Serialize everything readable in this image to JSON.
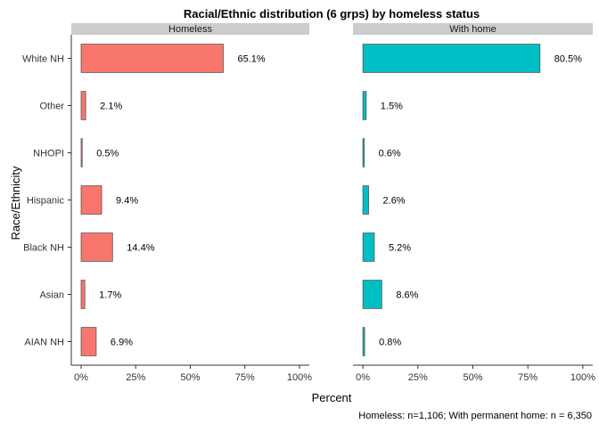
{
  "chart_data": {
    "type": "bar",
    "orientation": "horizontal",
    "title": "Racial/Ethnic distribution (6 grps) by homeless status",
    "ylabel": "Race/Ethnicity",
    "xlabel": "Percent",
    "caption": "Homeless: n=1,106; With permanent home: n = 6,350",
    "categories": [
      "White NH",
      "Other",
      "NHOPI",
      "Hispanic",
      "Black NH",
      "Asian",
      "AIAN NH"
    ],
    "xlim": [
      0,
      100
    ],
    "x_ticks": [
      0,
      25,
      50,
      75,
      100
    ],
    "x_tick_labels": [
      "0%",
      "25%",
      "50%",
      "75%",
      "100%"
    ],
    "grid": false,
    "legend": "none",
    "series": [
      {
        "name": "Homeless",
        "color": "#F8766D",
        "values": [
          65.1,
          2.1,
          0.5,
          9.4,
          14.4,
          1.7,
          6.9
        ],
        "labels": [
          "65.1%",
          "2.1%",
          "0.5%",
          "9.4%",
          "14.4%",
          "1.7%",
          "6.9%"
        ]
      },
      {
        "name": "With home",
        "color": "#00BFC4",
        "values": [
          80.5,
          1.5,
          0.6,
          2.6,
          5.2,
          8.6,
          0.8
        ],
        "labels": [
          "80.5%",
          "1.5%",
          "0.6%",
          "2.6%",
          "5.2%",
          "8.6%",
          "0.8%"
        ]
      }
    ],
    "colors": {
      "strip": "#CCCCCC",
      "bar_outline": "#555555",
      "axis": "#333333"
    }
  }
}
